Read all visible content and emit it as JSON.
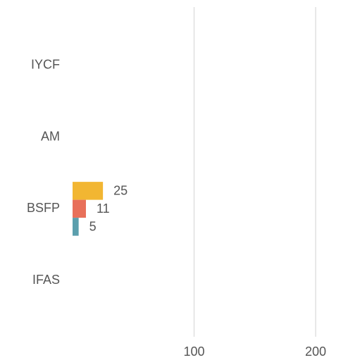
{
  "chart_data": {
    "type": "bar",
    "orientation": "horizontal",
    "categories": [
      "IYCF",
      "AM",
      "BSFP",
      "IFAS"
    ],
    "series": [
      {
        "color": "#f2b632",
        "values": [
          null,
          null,
          25,
          null
        ]
      },
      {
        "color": "#e8705a",
        "values": [
          null,
          null,
          11,
          null
        ]
      },
      {
        "color": "#5b9fad",
        "values": [
          null,
          null,
          5,
          null
        ]
      }
    ],
    "xlim": [
      0,
      220
    ],
    "xticks": [
      100,
      200
    ],
    "grid": true
  }
}
